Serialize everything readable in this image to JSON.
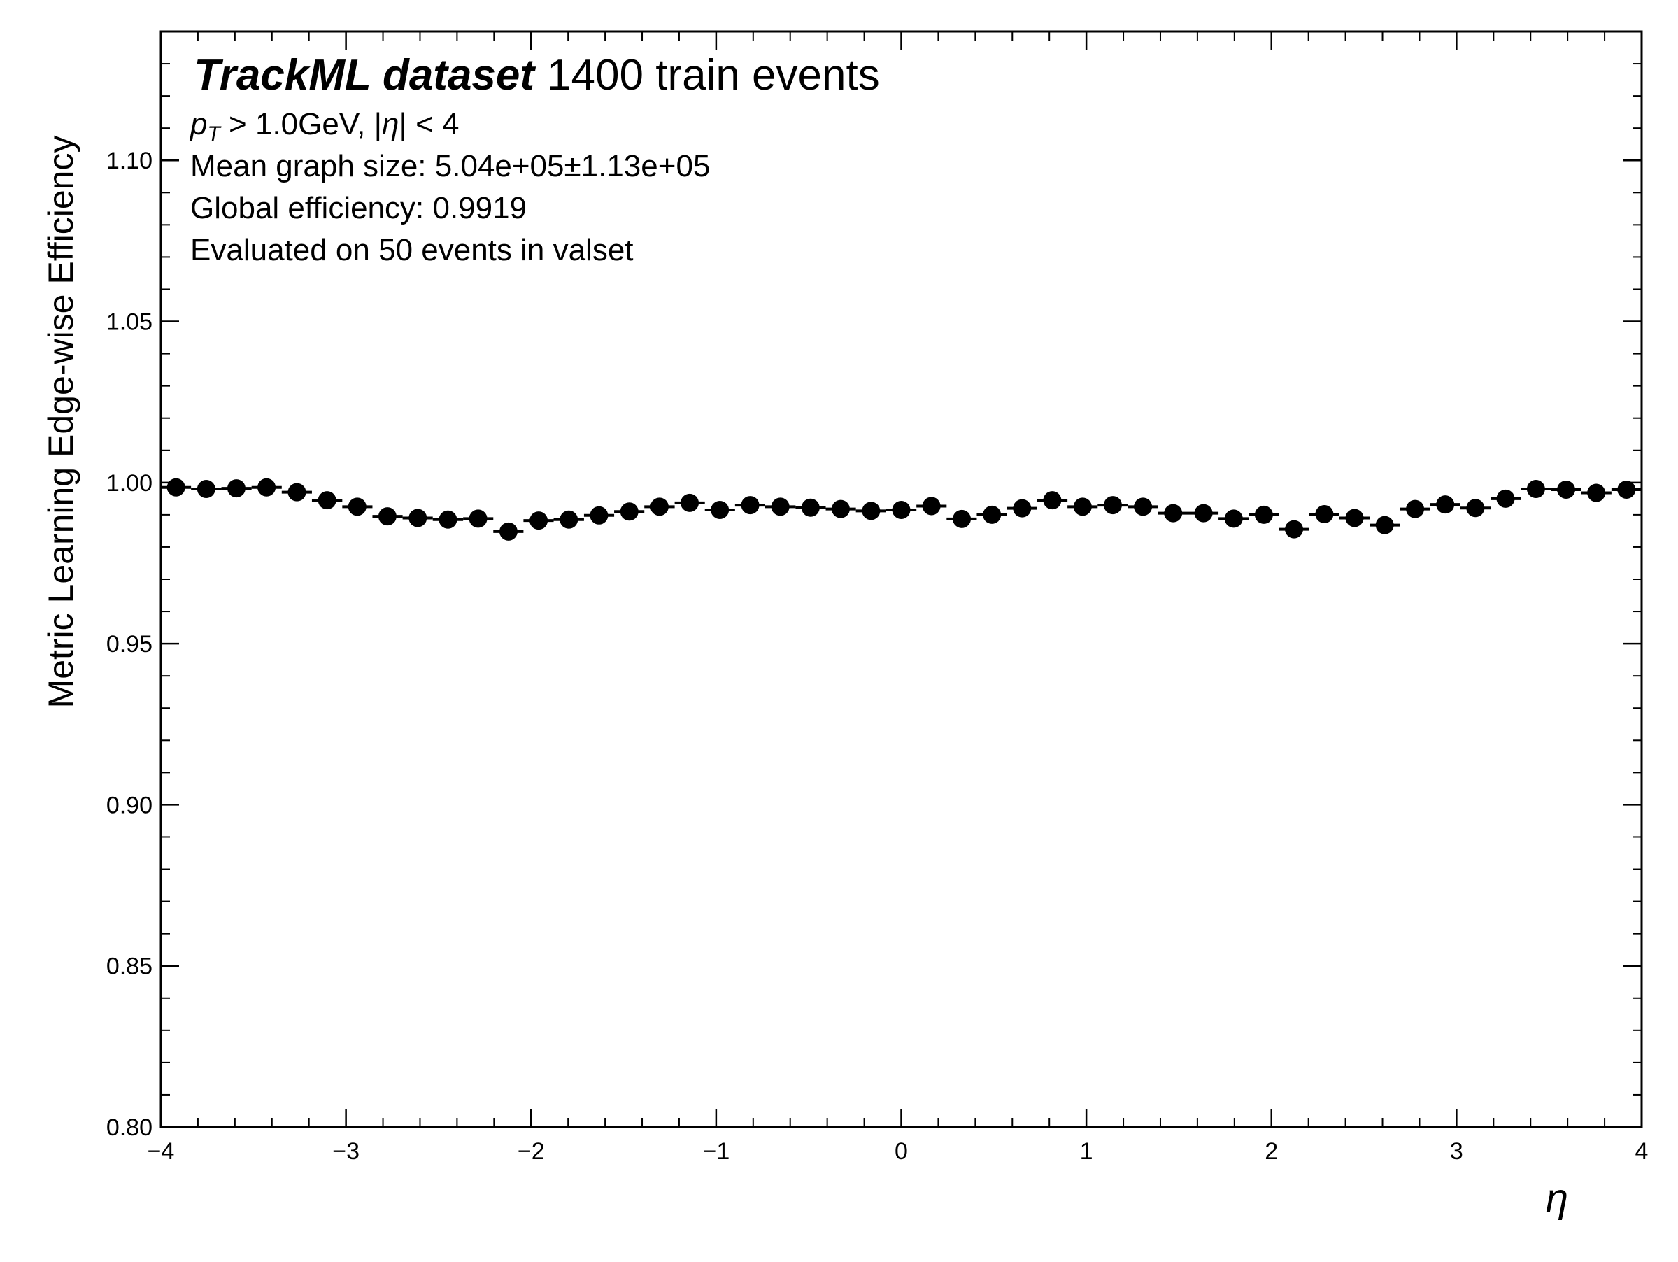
{
  "chart_data": {
    "type": "scatter",
    "experiment_label": "TrackML dataset",
    "experiment_sublabel": "1400 train events",
    "annotations": [
      "Mean graph size: 5.04e+05±1.13e+05",
      "Global efficiency: 0.9919",
      "Evaluated on 50 events in valset"
    ],
    "cut_label": {
      "pt_symbol": "p",
      "pt_subscript": "T",
      "pt_cut": " > 1.0GeV, |",
      "eta_symbol": "η",
      "eta_cut": "| < 4"
    },
    "xlabel": "η",
    "ylabel": "Metric Learning Edge-wise Efficiency",
    "xlim": [
      -4,
      4
    ],
    "ylim": [
      0.8,
      1.14
    ],
    "xticks": [
      -4,
      -3,
      -2,
      -1,
      0,
      1,
      2,
      3,
      4
    ],
    "xtick_labels": [
      "−4",
      "−3",
      "−2",
      "−1",
      "0",
      "1",
      "2",
      "3",
      "4"
    ],
    "yticks": [
      0.8,
      0.85,
      0.9,
      0.95,
      1.0,
      1.05,
      1.1
    ],
    "ytick_labels": [
      "0.80",
      "0.85",
      "0.90",
      "0.95",
      "1.00",
      "1.05",
      "1.10"
    ],
    "bin_edges": [
      -4.0,
      -3.837,
      -3.673,
      -3.51,
      -3.347,
      -3.184,
      -3.02,
      -2.857,
      -2.694,
      -2.531,
      -2.367,
      -2.204,
      -2.041,
      -1.878,
      -1.714,
      -1.551,
      -1.388,
      -1.224,
      -1.061,
      -0.898,
      -0.735,
      -0.571,
      -0.408,
      -0.245,
      -0.082,
      0.082,
      0.245,
      0.408,
      0.571,
      0.735,
      0.898,
      1.061,
      1.224,
      1.388,
      1.551,
      1.714,
      1.878,
      2.041,
      2.204,
      2.367,
      2.531,
      2.694,
      2.857,
      3.02,
      3.184,
      3.347,
      3.51,
      3.673,
      3.837,
      4.0
    ],
    "series": [
      {
        "x": [
          -3.918,
          -3.755,
          -3.592,
          -3.429,
          -3.265,
          -3.102,
          -2.939,
          -2.776,
          -2.612,
          -2.449,
          -2.286,
          -2.122,
          -1.959,
          -1.796,
          -1.633,
          -1.469,
          -1.306,
          -1.143,
          -0.98,
          -0.816,
          -0.653,
          -0.49,
          -0.327,
          -0.163,
          0.0,
          0.163,
          0.327,
          0.49,
          0.653,
          0.816,
          0.98,
          1.143,
          1.306,
          1.469,
          1.633,
          1.796,
          1.959,
          2.122,
          2.286,
          2.449,
          2.612,
          2.776,
          2.939,
          3.102,
          3.265,
          3.429,
          3.592,
          3.755,
          3.918
        ],
        "y": [
          0.9985,
          0.998,
          0.9982,
          0.9985,
          0.997,
          0.9945,
          0.9925,
          0.9895,
          0.989,
          0.9885,
          0.9888,
          0.9848,
          0.9882,
          0.9885,
          0.9898,
          0.991,
          0.9925,
          0.9937,
          0.9915,
          0.993,
          0.9925,
          0.9922,
          0.9918,
          0.9912,
          0.9915,
          0.9927,
          0.9887,
          0.99,
          0.992,
          0.9945,
          0.9925,
          0.993,
          0.9925,
          0.9905,
          0.9905,
          0.9888,
          0.99,
          0.9855,
          0.9902,
          0.989,
          0.9868,
          0.9918,
          0.9932,
          0.9921,
          0.995,
          0.998,
          0.9978,
          0.9968,
          0.9978
        ],
        "color": "#000000"
      }
    ],
    "grid": false,
    "legend": "none"
  }
}
